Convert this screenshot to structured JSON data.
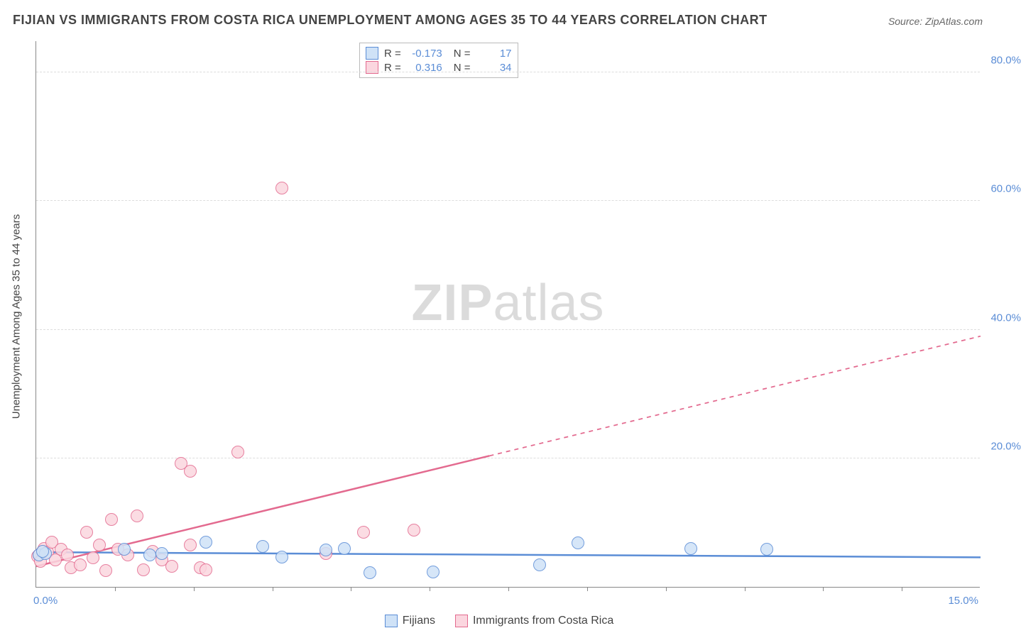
{
  "title": "FIJIAN VS IMMIGRANTS FROM COSTA RICA UNEMPLOYMENT AMONG AGES 35 TO 44 YEARS CORRELATION CHART",
  "source": "Source: ZipAtlas.com",
  "ylabel": "Unemployment Among Ages 35 to 44 years",
  "watermark_a": "ZIP",
  "watermark_b": "atlas",
  "chart": {
    "type": "scatter",
    "xlim": [
      0,
      15
    ],
    "ylim": [
      0,
      85
    ],
    "x_tick_step": 1.25,
    "x_label_min": "0.0%",
    "x_label_max": "15.0%",
    "y_ticks": [
      20,
      40,
      60,
      80
    ],
    "y_tick_labels": [
      "20.0%",
      "40.0%",
      "60.0%",
      "80.0%"
    ],
    "grid_color": "#dddddd",
    "axis_color": "#888888",
    "background_color": "#ffffff",
    "label_color": "#5b8dd6",
    "marker_radius": 9,
    "marker_stroke_width": 1.5,
    "trend_stroke_width": 2.5
  },
  "series": [
    {
      "name": "Fijians",
      "fill": "#cfe2f7",
      "stroke": "#5b8dd6",
      "R": "-0.173",
      "N": "17",
      "trend": {
        "x1": 0,
        "y1": 5.4,
        "x2": 15,
        "y2": 4.6,
        "solid_until_x": 15
      },
      "points": [
        [
          0.05,
          5.0
        ],
        [
          0.15,
          5.2
        ],
        [
          0.1,
          5.5
        ],
        [
          2.0,
          5.2
        ],
        [
          2.7,
          7.0
        ],
        [
          3.6,
          6.3
        ],
        [
          4.6,
          5.7
        ],
        [
          4.9,
          6.0
        ],
        [
          5.3,
          2.2
        ],
        [
          6.3,
          2.3
        ],
        [
          8.0,
          3.4
        ],
        [
          8.6,
          6.8
        ],
        [
          10.4,
          6.0
        ],
        [
          11.6,
          5.8
        ],
        [
          3.9,
          4.6
        ],
        [
          1.8,
          5.0
        ],
        [
          1.4,
          5.8
        ]
      ]
    },
    {
      "name": "Immigrants from Costa Rica",
      "fill": "#fbd6df",
      "stroke": "#e36a8f",
      "R": "0.316",
      "N": "34",
      "trend": {
        "x1": 0,
        "y1": 3.2,
        "x2": 15,
        "y2": 39.0,
        "solid_until_x": 7.2
      },
      "points": [
        [
          0.02,
          4.8
        ],
        [
          0.05,
          5.0
        ],
        [
          0.07,
          4.0
        ],
        [
          0.1,
          5.5
        ],
        [
          0.12,
          6.0
        ],
        [
          0.18,
          5.4
        ],
        [
          0.25,
          7.0
        ],
        [
          0.3,
          4.2
        ],
        [
          0.4,
          5.8
        ],
        [
          0.5,
          5.0
        ],
        [
          0.55,
          3.0
        ],
        [
          0.7,
          3.4
        ],
        [
          0.8,
          8.5
        ],
        [
          0.9,
          4.5
        ],
        [
          1.0,
          6.5
        ],
        [
          1.1,
          2.5
        ],
        [
          1.2,
          10.5
        ],
        [
          1.3,
          5.8
        ],
        [
          1.45,
          5.0
        ],
        [
          1.6,
          11.0
        ],
        [
          1.7,
          2.7
        ],
        [
          1.85,
          5.5
        ],
        [
          2.0,
          4.2
        ],
        [
          2.15,
          3.2
        ],
        [
          2.3,
          19.2
        ],
        [
          2.45,
          18.0
        ],
        [
          2.45,
          6.5
        ],
        [
          2.6,
          3.0
        ],
        [
          2.7,
          2.7
        ],
        [
          3.2,
          21.0
        ],
        [
          3.9,
          62.0
        ],
        [
          4.6,
          5.2
        ],
        [
          5.2,
          8.5
        ],
        [
          6.0,
          8.8
        ]
      ]
    }
  ],
  "stats_box": {
    "r_label": "R =",
    "n_label": "N ="
  },
  "legend": {
    "a": "Fijians",
    "b": "Immigrants from Costa Rica"
  }
}
